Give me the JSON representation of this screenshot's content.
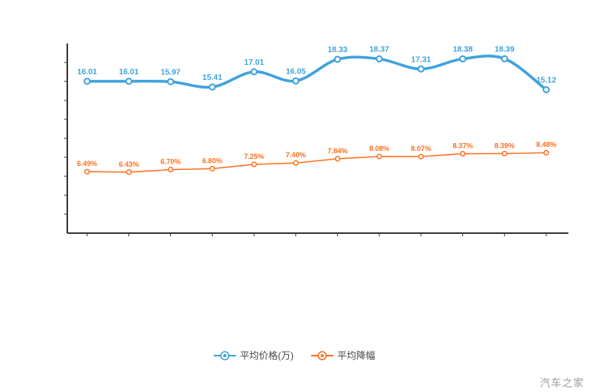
{
  "chart_data": {
    "type": "line",
    "title": "",
    "xlabel": "",
    "ylabel": "",
    "x_tick_labels": [],
    "ylim": [
      0,
      20
    ],
    "grid": false,
    "legend_position": "bottom-center",
    "series": [
      {
        "key": "avg-price",
        "name": "平均价格(万)",
        "color": "#3fa3dc",
        "style": "smooth-thick",
        "label_format": "number",
        "values": [
          16.01,
          16.01,
          15.97,
          15.41,
          17.01,
          16.05,
          18.33,
          18.37,
          17.31,
          18.38,
          18.39,
          15.12
        ]
      },
      {
        "key": "avg-discount-rate",
        "name": "平均降幅",
        "color": "#ff6f1e",
        "style": "thin",
        "label_format": "percent",
        "values": [
          6.49,
          6.43,
          6.7,
          6.8,
          7.25,
          7.4,
          7.84,
          8.08,
          8.07,
          8.37,
          8.39,
          8.48
        ]
      }
    ]
  },
  "colors": {
    "axis": "#3a3a3a",
    "background": "#ffffff",
    "watermark": "#9a9a9a"
  },
  "watermark": {
    "text": "汽车之家"
  }
}
